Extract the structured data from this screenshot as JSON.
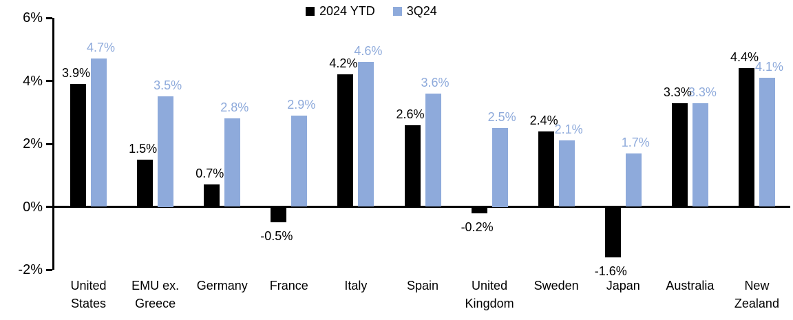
{
  "legend": {
    "items": [
      {
        "label": "2024 YTD",
        "color": "#000000"
      },
      {
        "label": "3Q24",
        "color": "#8EAADB"
      }
    ]
  },
  "colors": {
    "series_2024_ytd": "#000000",
    "series_3q24": "#8EAADB",
    "axis": "#000000",
    "background": "#FFFFFF"
  },
  "chart_data": {
    "type": "bar",
    "title": "",
    "xlabel": "",
    "ylabel": "",
    "categories": [
      "United States",
      "EMU ex. Greece",
      "Germany",
      "France",
      "Italy",
      "Spain",
      "United Kingdom",
      "Sweden",
      "Japan",
      "Australia",
      "New Zealand"
    ],
    "series": [
      {
        "name": "2024 YTD",
        "color": "#000000",
        "values": [
          3.9,
          1.5,
          0.7,
          -0.5,
          4.2,
          2.6,
          -0.2,
          2.4,
          -1.6,
          3.3,
          4.4
        ],
        "labels": [
          "3.9%",
          "1.5%",
          "0.7%",
          "-0.5%",
          "4.2%",
          "2.6%",
          "-0.2%",
          "2.4%",
          "-1.6%",
          "3.3%",
          "4.4%"
        ]
      },
      {
        "name": "3Q24",
        "color": "#8EAADB",
        "values": [
          4.7,
          3.5,
          2.8,
          2.9,
          4.6,
          3.6,
          2.5,
          2.1,
          1.7,
          3.3,
          4.1
        ],
        "labels": [
          "4.7%",
          "3.5%",
          "2.8%",
          "2.9%",
          "4.6%",
          "3.6%",
          "2.5%",
          "2.1%",
          "1.7%",
          "3.3%",
          "4.1%"
        ]
      }
    ],
    "ylim": [
      -2,
      6
    ],
    "y_ticks": [
      6,
      4,
      2,
      0,
      -2
    ],
    "y_tick_labels": [
      "6%",
      "4%",
      "2%",
      "0%",
      "-2%"
    ],
    "grid": false,
    "legend_position": "top-center"
  }
}
